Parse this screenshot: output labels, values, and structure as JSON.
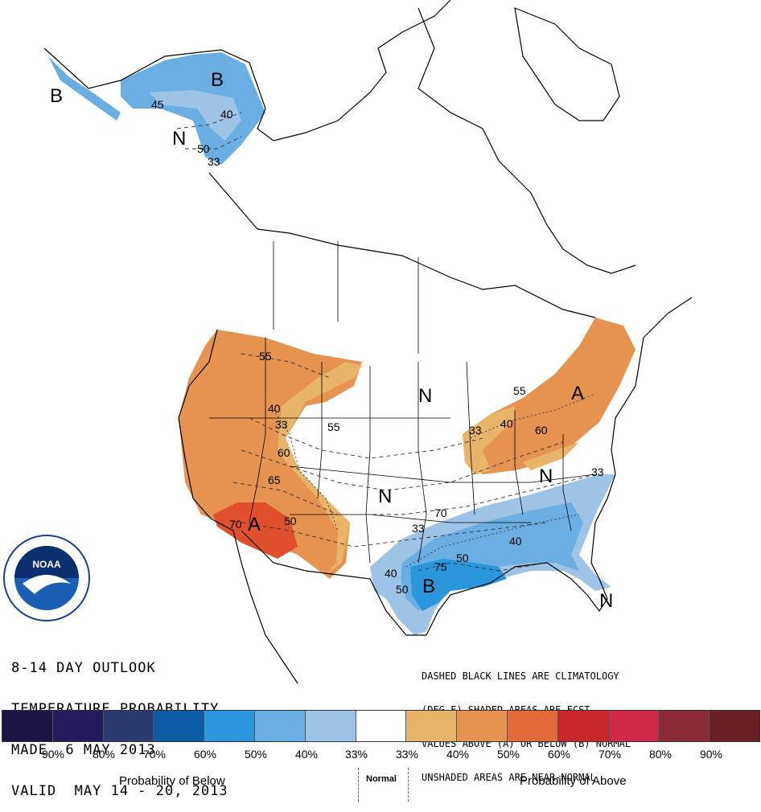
{
  "title_lines": [
    "8-14 DAY OUTLOOK",
    "TEMPERATURE PROBABILITY",
    "MADE  6 MAY 2013",
    "VALID  MAY 14 - 20, 2013"
  ],
  "legend_note_lines": [
    "DASHED BLACK LINES ARE CLIMATOLOGY",
    "(DEG F) SHADED AREAS ARE FCST",
    "VALUES ABOVE (A) OR BELOW (B) NORMAL",
    "UNSHADED AREAS ARE NEAR-NORMAL"
  ],
  "colors": {
    "below_90": "#1b1446",
    "below_80": "#241a5c",
    "below_70": "#2a3a6e",
    "below_60": "#0b5ba4",
    "below_50": "#2b96dc",
    "below_40": "#6aaee4",
    "below_33": "#9dc3e6",
    "normal": "#ffffff",
    "above_33": "#e8b46a",
    "above_40": "#e69251",
    "above_50": "#e06a3a",
    "above_60": "#e0502e",
    "above_70": "#c8282a",
    "above_80": "#d02848",
    "above_90": "#8a2a38",
    "above_extra": "#6a1e26"
  },
  "colorbar": [
    "#1b1446",
    "#241a5c",
    "#2a3a6e",
    "#0b5ba4",
    "#2b96dc",
    "#6aaee4",
    "#9dc3e6",
    "#ffffff",
    "#e8b46a",
    "#e69251",
    "#e06a3a",
    "#c8282a",
    "#d02848",
    "#8a2a38",
    "#6a1e26"
  ],
  "percent_labels": [
    "90%",
    "80%",
    "70%",
    "60%",
    "50%",
    "40%",
    "33%",
    "33%",
    "40%",
    "50%",
    "60%",
    "70%",
    "80%",
    "90%"
  ],
  "captions": {
    "below": "Probability of Below",
    "normal": "Normal",
    "above": "Probability of Above"
  },
  "logo_text": "NOAA",
  "map_labels": {
    "letters": [
      "B",
      "B",
      "N",
      "A",
      "N",
      "N",
      "A",
      "B",
      "N",
      "N"
    ],
    "values": [
      "45",
      "40",
      "50",
      "33",
      "55",
      "40",
      "33",
      "55",
      "60",
      "65",
      "70",
      "50",
      "33",
      "40",
      "60",
      "70",
      "33",
      "40",
      "50",
      "75",
      "40",
      "50",
      "33",
      "55"
    ]
  }
}
